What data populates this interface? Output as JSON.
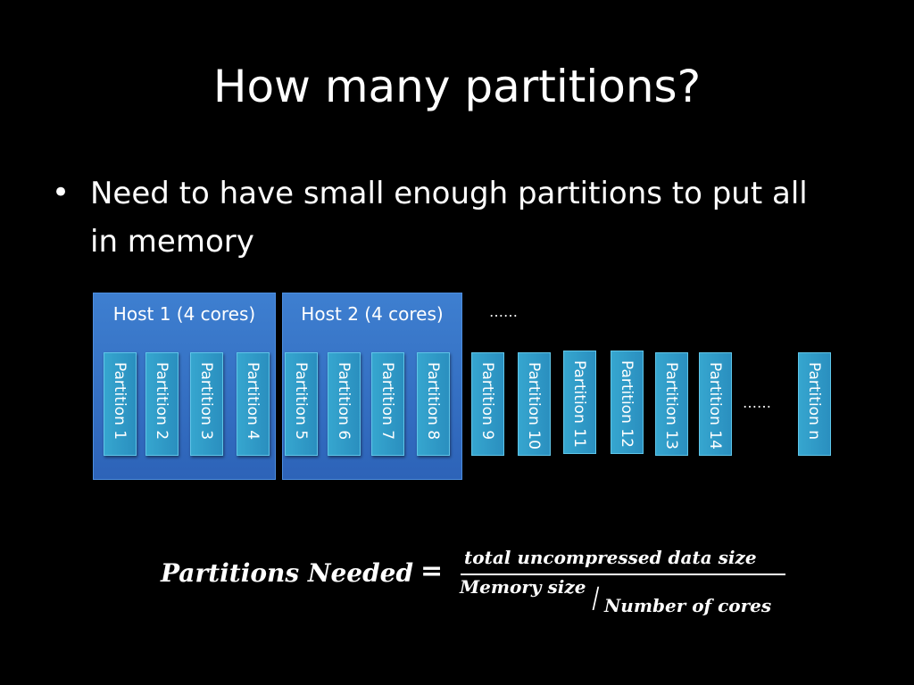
{
  "slide": {
    "title": "How many partitions?",
    "bullet_symbol": "•",
    "bullet": "Need to have small enough partitions to put all in memory"
  },
  "diagram": {
    "hosts": [
      {
        "label": "Host 1 (4 cores)"
      },
      {
        "label": "Host 2 (4 cores)"
      }
    ],
    "host_ellipsis": "……",
    "partitions": [
      "Partition 1",
      "Partition 2",
      "Partition 3",
      "Partition 4",
      "Partition 5",
      "Partition 6",
      "Partition 7",
      "Partition 8",
      "Partition 9",
      "Partition 10",
      "Partition 11",
      "Partition 12",
      "Partition 13",
      "Partition 14",
      "Partition n"
    ],
    "partition_ellipsis": "……",
    "colors": {
      "host": "#3a76c8",
      "partition": "#2f9ac6",
      "background": "#000000"
    }
  },
  "formula": {
    "lhs": "Partitions Needed",
    "equals": "=",
    "numerator": "total uncompressed data size",
    "denominator_numerator": "Memory size",
    "slash": "/",
    "denominator_denominator": "Number of cores"
  }
}
